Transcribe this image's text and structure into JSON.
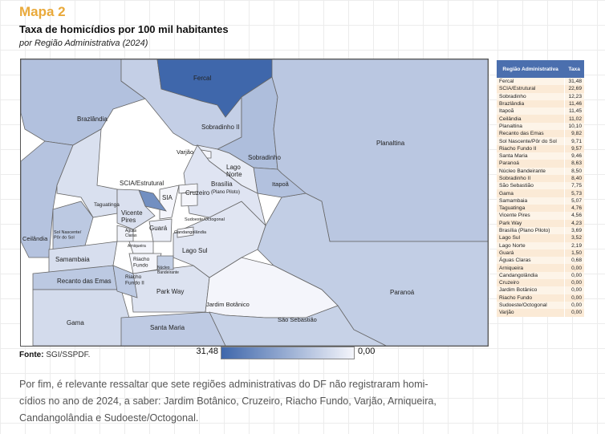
{
  "header": {
    "kicker": "Mapa 2",
    "title": "Taxa de homicídios por 100 mil habitantes",
    "subtitle": "por Região Administrativa (2024)"
  },
  "chart_data": {
    "type": "choropleth-map",
    "title": "Taxa de homicídios por 100 mil habitantes",
    "subtitle": "por Região Administrativa (2024)",
    "color_scale": {
      "min": 0.0,
      "max": 31.48,
      "min_label": "0,00",
      "max_label": "31,48",
      "min_color": "#f4f5fb",
      "max_color": "#3f67ab"
    },
    "table": {
      "headers": [
        "Região Administrativa",
        "Taxa"
      ],
      "rows": [
        {
          "name": "Fercal",
          "value": "31,48"
        },
        {
          "name": "SCIA/Estrutural",
          "value": "22,69"
        },
        {
          "name": "Sobradinho",
          "value": "12,23"
        },
        {
          "name": "Brazlândia",
          "value": "11,46"
        },
        {
          "name": "Itapoã",
          "value": "11,45"
        },
        {
          "name": "Ceilândia",
          "value": "11,02"
        },
        {
          "name": "Planaltina",
          "value": "10,10"
        },
        {
          "name": "Recanto das Emas",
          "value": "9,82"
        },
        {
          "name": "Sol Nascente/Pôr do Sol",
          "value": "9,71"
        },
        {
          "name": "Riacho Fundo II",
          "value": "9,57"
        },
        {
          "name": "Santa Maria",
          "value": "9,46"
        },
        {
          "name": "Paranoá",
          "value": "8,63"
        },
        {
          "name": "Núcleo Bandeirante",
          "value": "8,50"
        },
        {
          "name": "Sobradinho II",
          "value": "8,40"
        },
        {
          "name": "São Sebastião",
          "value": "7,75"
        },
        {
          "name": "Gama",
          "value": "5,73"
        },
        {
          "name": "Samambaia",
          "value": "5,07"
        },
        {
          "name": "Taguatinga",
          "value": "4,76"
        },
        {
          "name": "Vicente Pires",
          "value": "4,56"
        },
        {
          "name": "Park Way",
          "value": "4,23"
        },
        {
          "name": "Brasília (Plano Piloto)",
          "value": "3,69"
        },
        {
          "name": "Lago Sul",
          "value": "3,52"
        },
        {
          "name": "Lago Norte",
          "value": "2,19"
        },
        {
          "name": "Guará",
          "value": "1,50"
        },
        {
          "name": "Águas Claras",
          "value": "0,68"
        },
        {
          "name": "Arniqueira",
          "value": "0,00"
        },
        {
          "name": "Candangolândia",
          "value": "0,00"
        },
        {
          "name": "Cruzeiro",
          "value": "0,00"
        },
        {
          "name": "Jardim Botânico",
          "value": "0,00"
        },
        {
          "name": "Riacho Fundo",
          "value": "0,00"
        },
        {
          "name": "Sudoeste/Octogonal",
          "value": "0,00"
        },
        {
          "name": "Varjão",
          "value": "0,00"
        }
      ]
    }
  },
  "map": {
    "regions": [
      {
        "key": "Brazlândia",
        "rate": 11.46,
        "lines": [
          "Brazlândia"
        ]
      },
      {
        "key": "Sobradinho II",
        "rate": 8.4,
        "lines": [
          "Sobradinho II"
        ]
      },
      {
        "key": "Fercal",
        "rate": 31.48,
        "lines": [
          "Fercal"
        ]
      },
      {
        "key": "Sobradinho",
        "rate": 12.23,
        "lines": [
          "Sobradinho"
        ]
      },
      {
        "key": "Planaltina",
        "rate": 10.1,
        "lines": [
          "Planaltina"
        ]
      },
      {
        "key": "Paranoá",
        "rate": 8.63,
        "lines": [
          "Paranoá"
        ]
      },
      {
        "key": "Itapoã",
        "rate": 11.45,
        "lines": [
          "Itapoã"
        ]
      },
      {
        "key": "Lago Norte",
        "rate": 2.19,
        "lines": [
          "Lago",
          "Norte"
        ]
      },
      {
        "key": "Varjão",
        "rate": 0,
        "lines": [
          "Varjão"
        ]
      },
      {
        "key": "Ceilândia",
        "rate": 11.02,
        "lines": [
          "Ceilândia"
        ]
      },
      {
        "key": "Taguatinga",
        "rate": 4.76,
        "lines": [
          "Taguatinga"
        ]
      },
      {
        "key": "Sol Nascente/Pôr do Sol",
        "rate": 9.71,
        "lines": [
          "Sol Nascente/",
          "Pôr do Sol"
        ]
      },
      {
        "key": "Samambaia",
        "rate": 5.07,
        "lines": [
          "Samambaia"
        ]
      },
      {
        "key": "Recanto das Emas",
        "rate": 9.82,
        "lines": [
          "Recanto das Emas"
        ]
      },
      {
        "key": "Gama",
        "rate": 5.73,
        "lines": [
          "Gama"
        ]
      },
      {
        "key": "Santa Maria",
        "rate": 9.46,
        "lines": [
          "Santa Maria"
        ]
      },
      {
        "key": "Park Way",
        "rate": 4.23,
        "lines": [
          "Park Way"
        ]
      },
      {
        "key": "Jardim Botânico",
        "rate": 0,
        "lines": [
          "Jardim Botânico"
        ]
      },
      {
        "key": "São Sebastião",
        "rate": 7.75,
        "lines": [
          "São Sebastião"
        ]
      },
      {
        "key": "Lago Sul",
        "rate": 3.52,
        "lines": [
          "Lago Sul"
        ]
      },
      {
        "key": "Brasília (Plano Piloto)",
        "rate": 3.69,
        "lines": [
          "Brasília",
          "(Plano Piloto)"
        ]
      },
      {
        "key": "SIA",
        "rate": 0,
        "lines": [
          "SIA"
        ]
      },
      {
        "key": "SCIA/Estrutural",
        "rate": 22.69,
        "lines": [
          "SCIA/Estrutural"
        ]
      },
      {
        "key": "Vicente Pires",
        "rate": 4.56,
        "lines": [
          "Vicente",
          "Pires"
        ]
      },
      {
        "key": "Guará",
        "rate": 1.5,
        "lines": [
          "Guará"
        ]
      },
      {
        "key": "Águas Claras",
        "rate": 0.68,
        "lines": [
          "Águas",
          "Claras"
        ]
      },
      {
        "key": "Arniqueira",
        "rate": 0,
        "lines": [
          "Arniqueira"
        ]
      },
      {
        "key": "Riacho Fundo",
        "rate": 0,
        "lines": [
          "Riacho",
          "Fundo"
        ]
      },
      {
        "key": "Riacho Fundo II",
        "rate": 9.57,
        "lines": [
          "Riacho",
          "Fundo II"
        ]
      },
      {
        "key": "Núcleo Bandeirante",
        "rate": 8.5,
        "lines": [
          "Núcleo",
          "Bandeirante"
        ]
      },
      {
        "key": "Cruzeiro",
        "rate": 0,
        "lines": [
          "Cruzeiro"
        ]
      },
      {
        "key": "Sudoeste/Octogonal",
        "rate": 0,
        "lines": [
          "Sudoeste/Octogonal"
        ]
      },
      {
        "key": "Candangolândia",
        "rate": 0,
        "lines": [
          "Candangolândia"
        ]
      }
    ]
  },
  "footer": {
    "source_label": "Fonte:",
    "source_value": "SGI/SSPDF."
  },
  "paragraph": {
    "lines": [
      "Por fim, é relevante ressaltar que sete regiões administrativas do DF não registraram homi-",
      "cídios no ano de 2024, a saber: Jardim Botânico, Cruzeiro, Riacho Fundo, Varjão, Arniqueira,",
      "Candangolândia e Sudoeste/Octogonal."
    ]
  }
}
